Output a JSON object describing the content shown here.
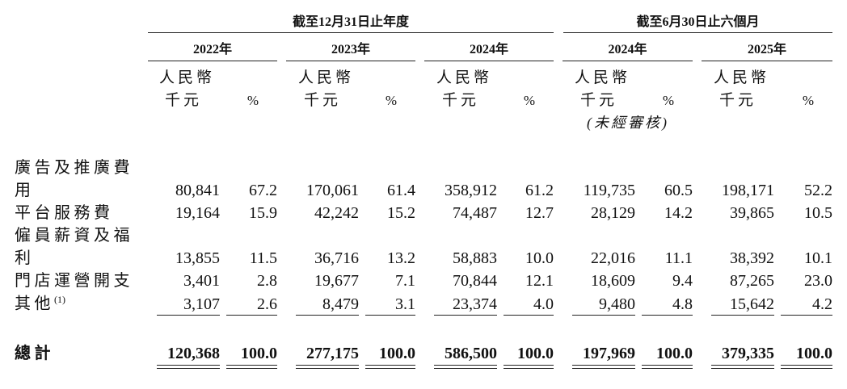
{
  "table": {
    "group_headers": [
      "截至12月31日止年度",
      "截至6月30日止六個月"
    ],
    "columns": [
      {
        "year": "2022年",
        "currency": "人民幣",
        "unit": "千元",
        "percent": "%"
      },
      {
        "year": "2023年",
        "currency": "人民幣",
        "unit": "千元",
        "percent": "%"
      },
      {
        "year": "2024年",
        "currency": "人民幣",
        "unit": "千元",
        "percent": "%"
      },
      {
        "year": "2024年",
        "currency": "人民幣",
        "unit": "千元",
        "percent": "%",
        "note": "(未經審核)"
      },
      {
        "year": "2025年",
        "currency": "人民幣",
        "unit": "千元",
        "percent": "%"
      }
    ],
    "rows": [
      {
        "label": "廣告及推廣費用",
        "values": [
          "80,841",
          "67.2",
          "170,061",
          "61.4",
          "358,912",
          "61.2",
          "119,735",
          "60.5",
          "198,171",
          "52.2"
        ]
      },
      {
        "label": "平台服務費",
        "values": [
          "19,164",
          "15.9",
          "42,242",
          "15.2",
          "74,487",
          "12.7",
          "28,129",
          "14.2",
          "39,865",
          "10.5"
        ]
      },
      {
        "label": "僱員薪資及福利",
        "values": [
          "13,855",
          "11.5",
          "36,716",
          "13.2",
          "58,883",
          "10.0",
          "22,016",
          "11.1",
          "38,392",
          "10.1"
        ]
      },
      {
        "label": "門店運營開支",
        "values": [
          "3,401",
          "2.8",
          "19,677",
          "7.1",
          "70,844",
          "12.1",
          "18,609",
          "9.4",
          "87,265",
          "23.0"
        ]
      },
      {
        "label": "其他",
        "note": "(1)",
        "values": [
          "3,107",
          "2.6",
          "8,479",
          "3.1",
          "23,374",
          "4.0",
          "9,480",
          "4.8",
          "15,642",
          "4.2"
        ]
      }
    ],
    "total": {
      "label": "總計",
      "values": [
        "120,368",
        "100.0",
        "277,175",
        "100.0",
        "586,500",
        "100.0",
        "197,969",
        "100.0",
        "379,335",
        "100.0"
      ]
    }
  }
}
